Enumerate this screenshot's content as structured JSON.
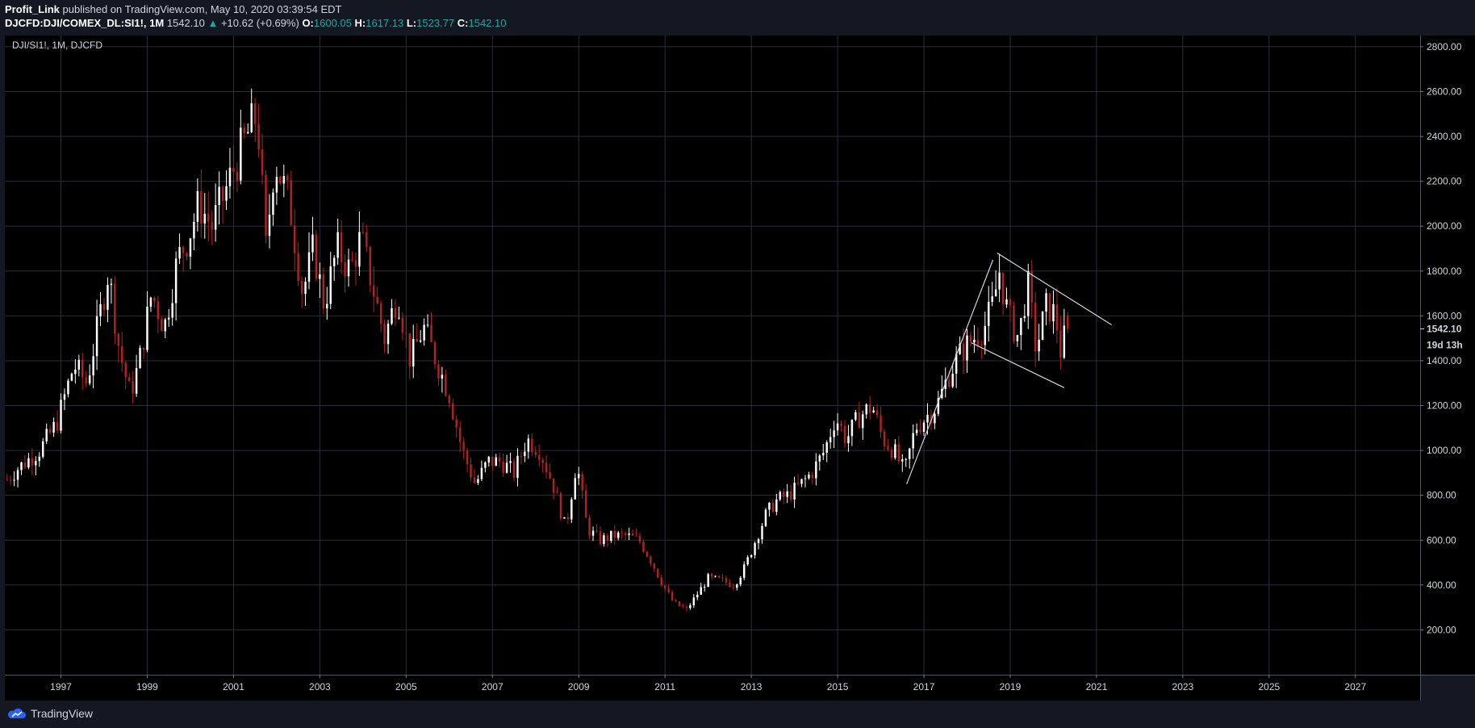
{
  "header": {
    "publisher": "Profit_Link",
    "published_text": "published on TradingView.com, May 10, 2020 03:39:54 EDT",
    "symbol": "DJCFD:DJI/COMEX_DL:SI1!, 1M",
    "price": "1542.10",
    "change_arrow": "▲",
    "change": "+10.62 (+0.69%)",
    "open_label": "O:",
    "open": "1600.05",
    "high_label": "H:",
    "high": "1617.13",
    "low_label": "L:",
    "low": "1523.77",
    "close_label": "C:",
    "close": "1542.10"
  },
  "footer": {
    "brand": "TradingView"
  },
  "colors": {
    "background": "#000000",
    "panel": "#141823",
    "grid": "#2a2e39",
    "up_candle": "#ffffff",
    "down_candle": "#b22222",
    "trendline": "#d1d4dc",
    "accent": "#26a69a"
  },
  "chart_data": {
    "type": "candlestick",
    "title": "DJI/SI1!, 1M, DJCFD",
    "interval": "1M",
    "y_axis_position": "right",
    "ylim": [
      0,
      2850
    ],
    "y_ticks": [
      200,
      400,
      600,
      800,
      1000,
      1200,
      1400,
      1600,
      1800,
      2000,
      2200,
      2400,
      2600,
      2800
    ],
    "y_tick_labels": [
      "200.00",
      "400.00",
      "600.00",
      "800.00",
      "1000.00",
      "1200.00",
      "1400.00",
      "1600.00",
      "1800.00",
      "2000.00",
      "2200.00",
      "2400.00",
      "2600.00",
      "2800.00"
    ],
    "x_range": [
      1995.7,
      2028.5
    ],
    "x_ticks": [
      1997,
      1999,
      2001,
      2003,
      2005,
      2007,
      2009,
      2011,
      2013,
      2015,
      2017,
      2019,
      2021,
      2023,
      2025,
      2027
    ],
    "x_tick_labels": [
      "1997",
      "1999",
      "2001",
      "2003",
      "2005",
      "2007",
      "2009",
      "2011",
      "2013",
      "2015",
      "2017",
      "2019",
      "2021",
      "2023",
      "2025",
      "2027"
    ],
    "grid": true,
    "last_price_label": "1542.10",
    "countdown_label": "19d 13h",
    "close_path": [
      [
        1995.75,
        870
      ],
      [
        1996.0,
        920
      ],
      [
        1996.5,
        1000
      ],
      [
        1996.9,
        1120
      ],
      [
        1997.3,
        1380
      ],
      [
        1997.6,
        1300
      ],
      [
        1997.9,
        1600
      ],
      [
        1998.1,
        1800
      ],
      [
        1998.35,
        1450
      ],
      [
        1998.6,
        1250
      ],
      [
        1998.8,
        1380
      ],
      [
        1999.1,
        1700
      ],
      [
        1999.4,
        1550
      ],
      [
        1999.7,
        1850
      ],
      [
        1999.95,
        1950
      ],
      [
        2000.2,
        2100
      ],
      [
        2000.5,
        2000
      ],
      [
        2000.8,
        2150
      ],
      [
        2001.05,
        2280
      ],
      [
        2001.3,
        2400
      ],
      [
        2001.55,
        2500
      ],
      [
        2001.75,
        1900
      ],
      [
        2001.95,
        2300
      ],
      [
        2002.3,
        2100
      ],
      [
        2002.6,
        1700
      ],
      [
        2002.85,
        1900
      ],
      [
        2003.1,
        1650
      ],
      [
        2003.4,
        1900
      ],
      [
        2003.7,
        1800
      ],
      [
        2003.95,
        1950
      ],
      [
        2004.2,
        1750
      ],
      [
        2004.5,
        1500
      ],
      [
        2004.8,
        1700
      ],
      [
        2005.1,
        1400
      ],
      [
        2005.4,
        1550
      ],
      [
        2005.7,
        1400
      ],
      [
        2006.0,
        1250
      ],
      [
        2006.3,
        1000
      ],
      [
        2006.6,
        850
      ],
      [
        2006.9,
        950
      ],
      [
        2007.2,
        950
      ],
      [
        2007.5,
        900
      ],
      [
        2007.8,
        1050
      ],
      [
        2008.1,
        1000
      ],
      [
        2008.4,
        850
      ],
      [
        2008.7,
        650
      ],
      [
        2008.95,
        950
      ],
      [
        2009.2,
        650
      ],
      [
        2009.5,
        600
      ],
      [
        2009.8,
        620
      ],
      [
        2010.1,
        620
      ],
      [
        2010.4,
        600
      ],
      [
        2010.7,
        500
      ],
      [
        2010.95,
        400
      ],
      [
        2011.2,
        320
      ],
      [
        2011.5,
        290
      ],
      [
        2011.75,
        360
      ],
      [
        2012.0,
        430
      ],
      [
        2012.3,
        420
      ],
      [
        2012.6,
        400
      ],
      [
        2012.85,
        480
      ],
      [
        2013.1,
        600
      ],
      [
        2013.35,
        720
      ],
      [
        2013.6,
        780
      ],
      [
        2013.85,
        800
      ],
      [
        2014.1,
        840
      ],
      [
        2014.4,
        900
      ],
      [
        2014.7,
        1000
      ],
      [
        2014.95,
        1150
      ],
      [
        2015.2,
        1050
      ],
      [
        2015.5,
        1150
      ],
      [
        2015.8,
        1200
      ],
      [
        2016.05,
        1050
      ],
      [
        2016.3,
        1000
      ],
      [
        2016.55,
        900
      ],
      [
        2016.8,
        1100
      ],
      [
        2017.05,
        1150
      ],
      [
        2017.3,
        1200
      ],
      [
        2017.6,
        1350
      ],
      [
        2017.9,
        1450
      ],
      [
        2018.15,
        1500
      ],
      [
        2018.4,
        1550
      ],
      [
        2018.6,
        1650
      ],
      [
        2018.75,
        1800
      ],
      [
        2018.95,
        1600
      ],
      [
        2019.2,
        1500
      ],
      [
        2019.4,
        1750
      ],
      [
        2019.6,
        1450
      ],
      [
        2019.85,
        1650
      ],
      [
        2020.05,
        1600
      ],
      [
        2020.2,
        1400
      ],
      [
        2020.3,
        1600
      ],
      [
        2020.37,
        1542
      ]
    ],
    "trendlines": [
      {
        "name": "rising-support",
        "from": [
          2016.6,
          850
        ],
        "to": [
          2018.6,
          1850
        ]
      },
      {
        "name": "upper-channel",
        "from": [
          2018.7,
          1880
        ],
        "to": [
          2021.35,
          1560
        ]
      },
      {
        "name": "lower-channel",
        "from": [
          2018.1,
          1480
        ],
        "to": [
          2020.25,
          1280
        ]
      }
    ]
  }
}
